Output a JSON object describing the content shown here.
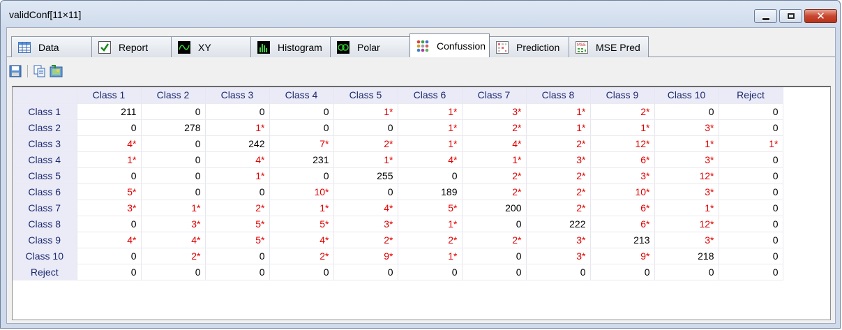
{
  "window": {
    "title": "validConf[11×11]"
  },
  "tabs": [
    {
      "label": "Data",
      "icon": "table-icon"
    },
    {
      "label": "Report",
      "icon": "checkbox-icon"
    },
    {
      "label": "XY",
      "icon": "xy-plot-icon"
    },
    {
      "label": "Histogram",
      "icon": "histogram-icon"
    },
    {
      "label": "Polar",
      "icon": "polar-icon"
    },
    {
      "label": "Confussion",
      "icon": "dots-icon",
      "active": true
    },
    {
      "label": "Prediction",
      "icon": "prediction-grid-icon"
    },
    {
      "label": "MSE Pred",
      "icon": "mse-icon"
    }
  ],
  "toolbar": [
    "save-icon",
    "copy-icon",
    "export-image-icon"
  ],
  "matrix": {
    "columns": [
      "Class 1",
      "Class 2",
      "Class 3",
      "Class 4",
      "Class 5",
      "Class 6",
      "Class 7",
      "Class 8",
      "Class 9",
      "Class 10",
      "Reject"
    ],
    "rows": [
      {
        "label": "Class 1",
        "cells": [
          "211",
          "0",
          "0",
          "0",
          "1*",
          "1*",
          "3*",
          "1*",
          "2*",
          "0",
          "0"
        ]
      },
      {
        "label": "Class 2",
        "cells": [
          "0",
          "278",
          "1*",
          "0",
          "0",
          "1*",
          "2*",
          "1*",
          "1*",
          "3*",
          "0"
        ]
      },
      {
        "label": "Class 3",
        "cells": [
          "4*",
          "0",
          "242",
          "7*",
          "2*",
          "1*",
          "4*",
          "2*",
          "12*",
          "1*",
          "1*"
        ]
      },
      {
        "label": "Class 4",
        "cells": [
          "1*",
          "0",
          "4*",
          "231",
          "1*",
          "4*",
          "1*",
          "3*",
          "6*",
          "3*",
          "0"
        ]
      },
      {
        "label": "Class 5",
        "cells": [
          "0",
          "0",
          "1*",
          "0",
          "255",
          "0",
          "2*",
          "2*",
          "3*",
          "12*",
          "0"
        ]
      },
      {
        "label": "Class 6",
        "cells": [
          "5*",
          "0",
          "0",
          "10*",
          "0",
          "189",
          "2*",
          "2*",
          "10*",
          "3*",
          "0"
        ]
      },
      {
        "label": "Class 7",
        "cells": [
          "3*",
          "1*",
          "2*",
          "1*",
          "4*",
          "5*",
          "200",
          "2*",
          "6*",
          "1*",
          "0"
        ]
      },
      {
        "label": "Class 8",
        "cells": [
          "0",
          "3*",
          "5*",
          "5*",
          "3*",
          "1*",
          "0",
          "222",
          "6*",
          "12*",
          "0"
        ]
      },
      {
        "label": "Class 9",
        "cells": [
          "4*",
          "4*",
          "5*",
          "4*",
          "2*",
          "2*",
          "2*",
          "3*",
          "213",
          "3*",
          "0"
        ]
      },
      {
        "label": "Class 10",
        "cells": [
          "0",
          "2*",
          "0",
          "2*",
          "9*",
          "1*",
          "0",
          "3*",
          "9*",
          "218",
          "0"
        ]
      },
      {
        "label": "Reject",
        "cells": [
          "0",
          "0",
          "0",
          "0",
          "0",
          "0",
          "0",
          "0",
          "0",
          "0",
          "0"
        ]
      }
    ]
  },
  "colors": {
    "error": "#e00000",
    "header_text": "#1c2a6e",
    "header_bg": "#ebebf8"
  }
}
